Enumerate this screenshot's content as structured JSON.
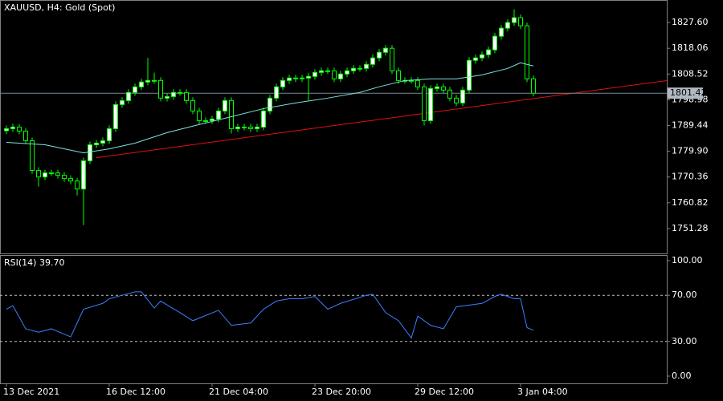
{
  "chart_data": [
    {
      "type": "candlestick",
      "title": "XAUUSD, H4:  Gold (Spot)",
      "open": [
        1787.5,
        1788.26,
        1788.86,
        1787.37,
        1783.79,
        1772.77,
        1770.38,
        1771.87,
        1771.87,
        1770.98,
        1769.79,
        1768.89,
        1765.91,
        1776.34,
        1782.3,
        1782.9,
        1783.79,
        1788.26,
        1797.2,
        1798.69,
        1801.67,
        1803.76,
        1805.55,
        1806.14,
        1806.14,
        1799.59,
        1800.18,
        1801.67,
        1801.67,
        1798.69,
        1794.82,
        1791.24,
        1791.24,
        1791.84,
        1794.82,
        1798.69,
        1788.26,
        1788.86,
        1788.86,
        1788.26,
        1788.86,
        1794.82,
        1799.59,
        1803.76,
        1806.14,
        1807.04,
        1806.74,
        1807.04,
        1807.63,
        1809.12,
        1809.72,
        1809.72,
        1806.74,
        1808.53,
        1809.72,
        1810.61,
        1810.61,
        1812.1,
        1814.49,
        1816.57,
        1818.06,
        1809.72,
        1806.14,
        1806.14,
        1806.14,
        1803.76,
        1791.24,
        1803.16,
        1803.76,
        1802.57,
        1799.59,
        1797.8,
        1802.57,
        1813.59,
        1814.49,
        1815.68,
        1817.47,
        1822.53,
        1825.51,
        1827.6,
        1829.39,
        1826.41,
        1806.74
      ],
      "high": [
        1789.46,
        1790.06,
        1790.06,
        1788.57,
        1784.99,
        1773.97,
        1773.07,
        1773.07,
        1773.07,
        1772.18,
        1770.99,
        1770.09,
        1777.54,
        1783.5,
        1784.1,
        1784.99,
        1789.46,
        1798.4,
        1799.89,
        1802.87,
        1804.96,
        1806.75,
        1814.5,
        1809.0,
        1807.34,
        1801.38,
        1802.87,
        1802.87,
        1802.87,
        1799.89,
        1796.02,
        1792.44,
        1793.04,
        1796.02,
        1799.89,
        1799.89,
        1790.06,
        1790.06,
        1790.06,
        1790.06,
        1796.02,
        1800.79,
        1804.96,
        1807.34,
        1808.24,
        1808.24,
        1808.24,
        1808.83,
        1810.32,
        1810.92,
        1810.92,
        1810.92,
        1809.73,
        1810.92,
        1811.81,
        1811.81,
        1813.3,
        1815.69,
        1817.77,
        1819.26,
        1819.26,
        1810.92,
        1807.34,
        1807.34,
        1807.34,
        1804.96,
        1804.36,
        1804.96,
        1804.96,
        1803.77,
        1800.79,
        1803.77,
        1814.79,
        1815.69,
        1816.88,
        1818.67,
        1823.73,
        1826.71,
        1828.8,
        1832.5,
        1830.59,
        1827.61,
        1807.94
      ],
      "low": [
        1786.3,
        1787.06,
        1786.17,
        1782.59,
        1771.57,
        1766.8,
        1769.18,
        1770.67,
        1769.78,
        1768.59,
        1767.69,
        1763.5,
        1752.5,
        1775.14,
        1781.1,
        1781.7,
        1782.59,
        1787.06,
        1796.0,
        1797.49,
        1800.47,
        1802.56,
        1804.35,
        1804.94,
        1798.39,
        1798.39,
        1798.98,
        1800.47,
        1797.49,
        1793.62,
        1790.04,
        1790.04,
        1790.04,
        1790.64,
        1793.62,
        1786.5,
        1787.06,
        1787.66,
        1787.06,
        1787.06,
        1787.66,
        1793.62,
        1798.39,
        1802.56,
        1804.94,
        1805.54,
        1805.54,
        1798.7,
        1806.43,
        1807.92,
        1808.52,
        1805.54,
        1805.54,
        1807.33,
        1808.52,
        1809.41,
        1809.41,
        1810.9,
        1813.29,
        1815.37,
        1808.52,
        1804.94,
        1804.94,
        1804.94,
        1802.56,
        1789.5,
        1790.04,
        1801.96,
        1801.37,
        1798.39,
        1796.6,
        1796.6,
        1801.37,
        1812.39,
        1813.29,
        1814.48,
        1816.27,
        1821.33,
        1824.31,
        1826.4,
        1825.21,
        1805.54,
        1800.22
      ],
      "close": [
        1788.26,
        1788.86,
        1787.37,
        1783.79,
        1772.77,
        1770.38,
        1771.87,
        1771.87,
        1770.98,
        1769.79,
        1768.89,
        1765.91,
        1776.34,
        1782.3,
        1782.9,
        1783.79,
        1788.26,
        1797.2,
        1798.69,
        1801.67,
        1803.76,
        1805.55,
        1806.14,
        1806.14,
        1799.59,
        1800.18,
        1801.67,
        1801.67,
        1798.69,
        1794.82,
        1791.24,
        1791.24,
        1791.84,
        1794.82,
        1798.69,
        1788.26,
        1788.86,
        1788.86,
        1788.26,
        1788.86,
        1794.82,
        1799.59,
        1803.76,
        1806.14,
        1807.04,
        1806.74,
        1807.04,
        1807.63,
        1809.12,
        1809.72,
        1809.72,
        1806.74,
        1808.53,
        1809.72,
        1810.61,
        1810.61,
        1812.1,
        1814.49,
        1816.57,
        1818.06,
        1809.72,
        1806.14,
        1806.14,
        1806.14,
        1803.76,
        1791.24,
        1803.16,
        1803.76,
        1802.57,
        1799.59,
        1797.8,
        1802.57,
        1813.59,
        1814.49,
        1815.68,
        1817.47,
        1822.53,
        1825.51,
        1827.6,
        1829.39,
        1826.41,
        1806.74,
        1801.42
      ],
      "color": "#00ff00",
      "up_fill": "#ffffff",
      "down_fill": "#000000",
      "ma": {
        "color": "#7fe0e0",
        "x": [
          0,
          6,
          12,
          16,
          20,
          25,
          30,
          35,
          40,
          45,
          50,
          55,
          58,
          62,
          66,
          70,
          74,
          78,
          80,
          82
        ],
        "values": [
          1783.2,
          1782.3,
          1779.3,
          1780.8,
          1782.9,
          1786.8,
          1789.8,
          1792.7,
          1795.7,
          1797.8,
          1799.6,
          1801.7,
          1803.8,
          1806.1,
          1806.7,
          1806.7,
          1808.2,
          1810.6,
          1812.7,
          1811.5
        ]
      },
      "trendline": {
        "color": "#e01010",
        "x": [
          14,
          102.75
        ],
        "values": [
          1777.5,
          1806.1
        ]
      },
      "current_price": 1801.42,
      "ylim": [
        1742.04,
        1835.95
      ],
      "yticks": [
        1751.28,
        1760.82,
        1770.36,
        {
          "value": 1779.9,
          "label": "1779.90"
        },
        1789.44,
        1798.98,
        1808.52,
        1818.06,
        {
          "value": 1827.6,
          "label": "1827.60"
        }
      ],
      "xticks": [
        {
          "value": 0,
          "label": "13 Dec 2021"
        },
        {
          "value": 16,
          "label": "16 Dec 12:00"
        },
        {
          "value": 32,
          "label": "21 Dec 04:00"
        },
        {
          "value": 48,
          "label": "23 Dec 20:00"
        },
        {
          "value": 64,
          "label": "29 Dec 12:00"
        },
        {
          "value": 80,
          "label": "3 Jan 04:00"
        }
      ]
    },
    {
      "type": "line",
      "title": "RSI(14) 39.70",
      "color": "#3f7fff",
      "x": [
        0,
        1,
        3,
        5,
        7,
        10,
        11,
        12,
        15,
        16,
        18,
        20,
        21,
        23,
        24,
        27,
        29,
        33,
        35,
        38,
        40,
        42,
        44,
        46,
        48,
        50,
        52,
        56,
        57,
        59,
        61,
        63,
        64,
        66,
        68,
        70,
        74,
        76,
        77,
        79,
        80,
        81,
        82
      ],
      "values": [
        58,
        61,
        41,
        38,
        41,
        34,
        46,
        58,
        63,
        67,
        70,
        73,
        73,
        59,
        65,
        55,
        48,
        57,
        44,
        46,
        58,
        65,
        67,
        67,
        69,
        58,
        63,
        70,
        71,
        55,
        48,
        33,
        52,
        44,
        41,
        60,
        63,
        69,
        71,
        67,
        67,
        42,
        39.7
      ],
      "ylim": [
        -6.25,
        104.86
      ],
      "yticks": [
        {
          "value": 100,
          "label": "100.00"
        },
        {
          "value": 70,
          "label": "70.00"
        },
        {
          "value": 30,
          "label": "30.00"
        },
        {
          "value": 0,
          "label": "0.00"
        }
      ],
      "levels": [
        70,
        30
      ]
    }
  ]
}
